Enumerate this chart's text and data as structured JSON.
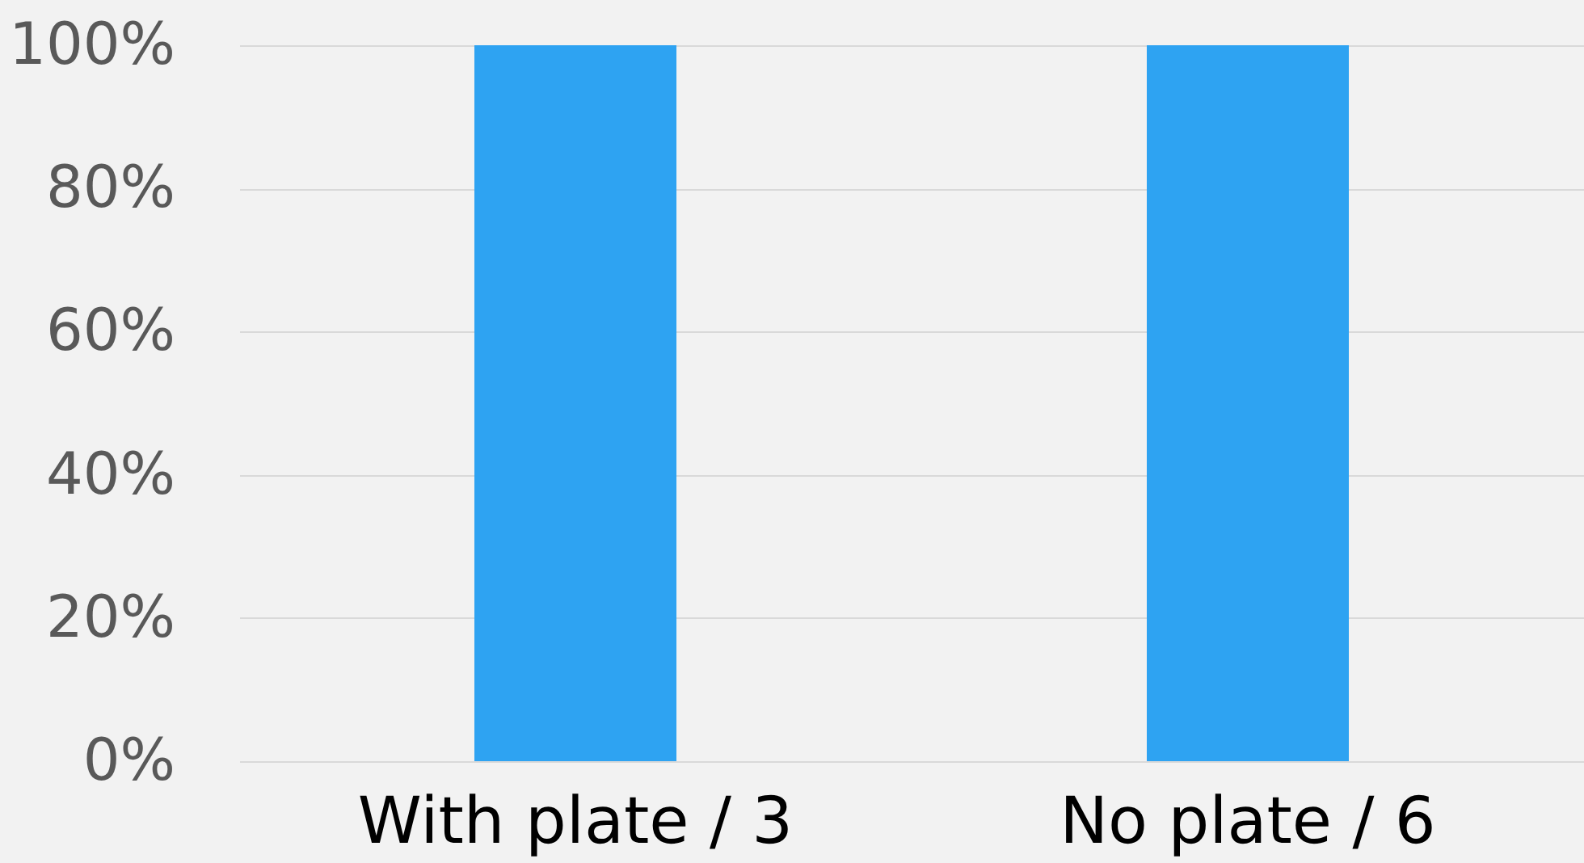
{
  "chart_data": {
    "type": "bar",
    "categories": [
      "With plate / 3",
      "No plate / 6"
    ],
    "values": [
      100,
      100
    ],
    "color": "#2ea3f2",
    "ylim": [
      0,
      100
    ],
    "yticks": [
      {
        "value": 0,
        "label": "0%"
      },
      {
        "value": 20,
        "label": "20%"
      },
      {
        "value": 40,
        "label": "40%"
      },
      {
        "value": 60,
        "label": "60%"
      },
      {
        "value": 80,
        "label": "80%"
      },
      {
        "value": 100,
        "label": "100%"
      }
    ],
    "grid": "y"
  }
}
